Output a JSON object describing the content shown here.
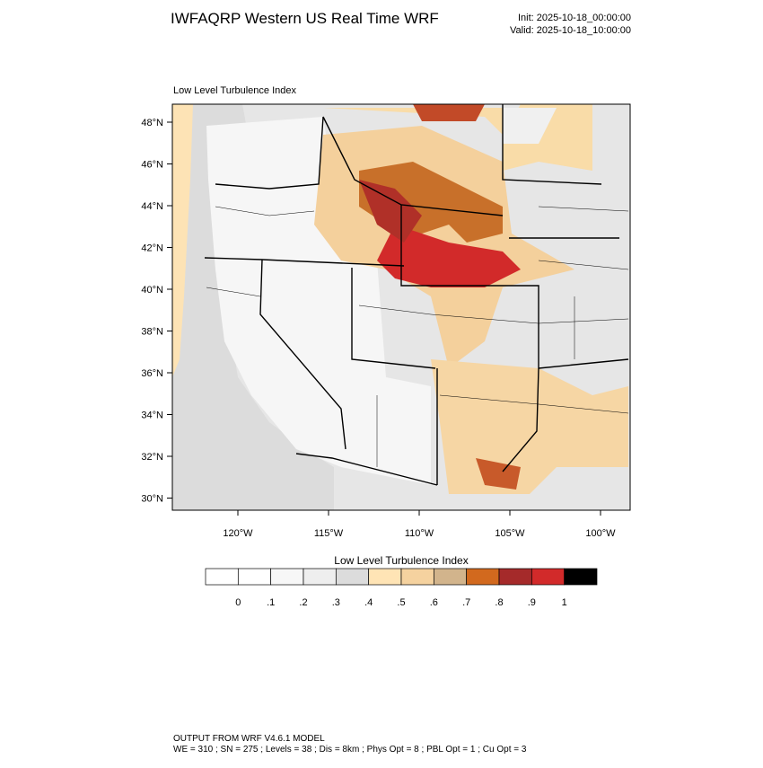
{
  "header": {
    "title": "IWFAQRP Western US Real Time WRF",
    "init": "Init: 2025-10-18_00:00:00",
    "valid": "Valid: 2025-10-18_10:00:00"
  },
  "map": {
    "title": "Low Level Turbulence Index",
    "lat_labels": [
      "48°N",
      "46°N",
      "44°N",
      "42°N",
      "40°N",
      "38°N",
      "36°N",
      "34°N",
      "32°N",
      "30°N"
    ],
    "lon_labels": [
      "120°W",
      "115°W",
      "110°W",
      "105°W",
      "100°W"
    ]
  },
  "colorbar": {
    "title": "Low Level Turbulence Index",
    "labels": [
      "0",
      ".1",
      ".2",
      ".3",
      ".4",
      ".5",
      ".6",
      ".7",
      ".8",
      ".9",
      "1"
    ],
    "colors": [
      "#ffffff",
      "#f7f7f7",
      "#eeeeee",
      "#dcdcdc",
      "#ffe4b5",
      "#f5d29f",
      "#d2b48c",
      "#d2691e",
      "#a52a2a",
      "#d22a2a",
      "#000000"
    ]
  },
  "footer": {
    "line1": "OUTPUT FROM WRF V4.6.1 MODEL",
    "line2": "WE = 310 ; SN = 275 ; Levels = 38 ; Dis = 8km ; Phys Opt = 8 ; PBL Opt = 1 ; Cu Opt = 3"
  }
}
